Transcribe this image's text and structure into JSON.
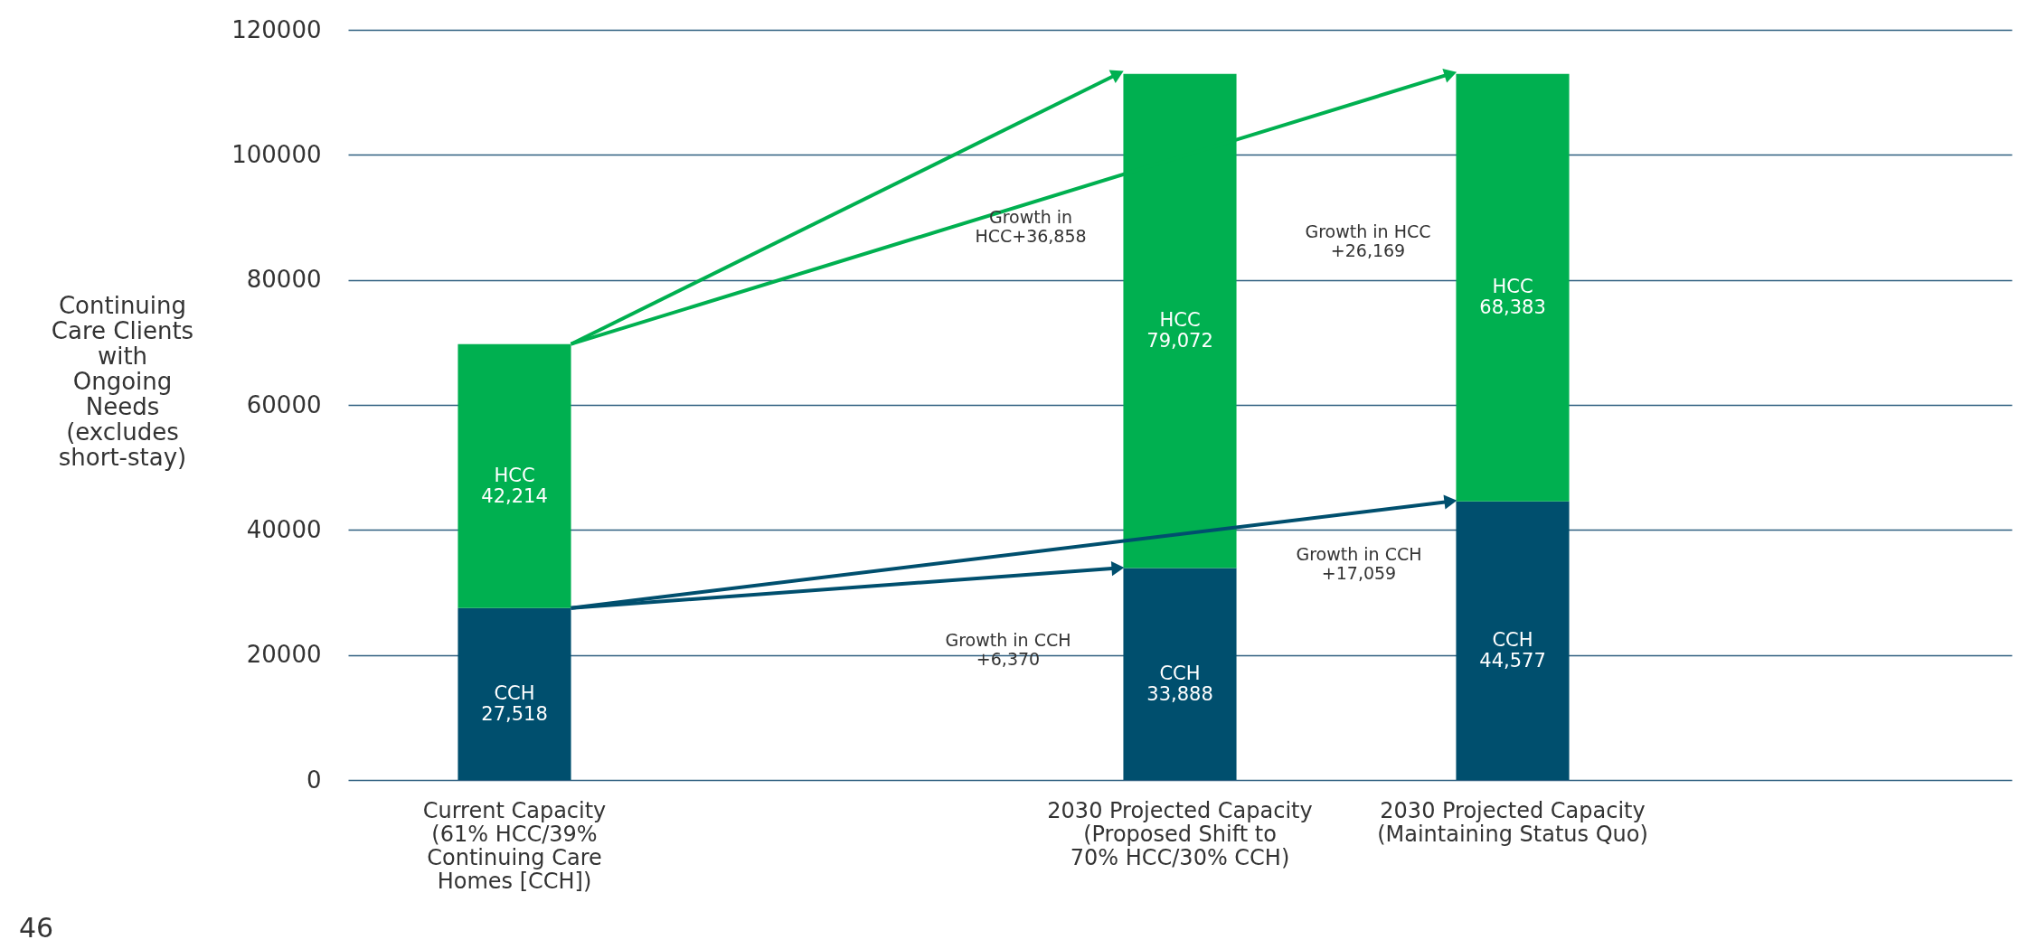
{
  "chart_data": {
    "type": "bar",
    "stacked": true,
    "categories": [
      "Current Capacity\n(61% HCC/39%\nContinuing Care\nHomes [CCH])",
      null,
      "2030 Projected Capacity\n(Proposed Shift to\n70% HCC/30% CCH)",
      "2030 Projected Capacity\n(Maintaining Status Quo)",
      null
    ],
    "ylabel": "Continuing\nCare Clients\nwith\nOngoing\nNeeds\n(excludes\nshort-stay)",
    "series": [
      {
        "name": "CCH",
        "color": "#004f6e",
        "values": [
          27518,
          null,
          33888,
          44577,
          null
        ],
        "value_labels": [
          "27,518",
          null,
          "33,888",
          "44,577",
          null
        ]
      },
      {
        "name": "HCC",
        "color": "#00b050",
        "values": [
          42214,
          null,
          79072,
          68383,
          null
        ],
        "value_labels": [
          "42,214",
          null,
          "79,072",
          "68,383",
          null
        ]
      }
    ],
    "ylim": [
      0,
      120000
    ],
    "yticks": [
      0,
      20000,
      40000,
      60000,
      80000,
      100000,
      120000
    ],
    "grid": "y",
    "annotations": [
      "Growth in\nHCC+36,858",
      "Growth in HCC\n+26,169",
      "Growth in CCH\n+17,059",
      "Growth in CCH\n+6,370",
      "46"
    ]
  }
}
